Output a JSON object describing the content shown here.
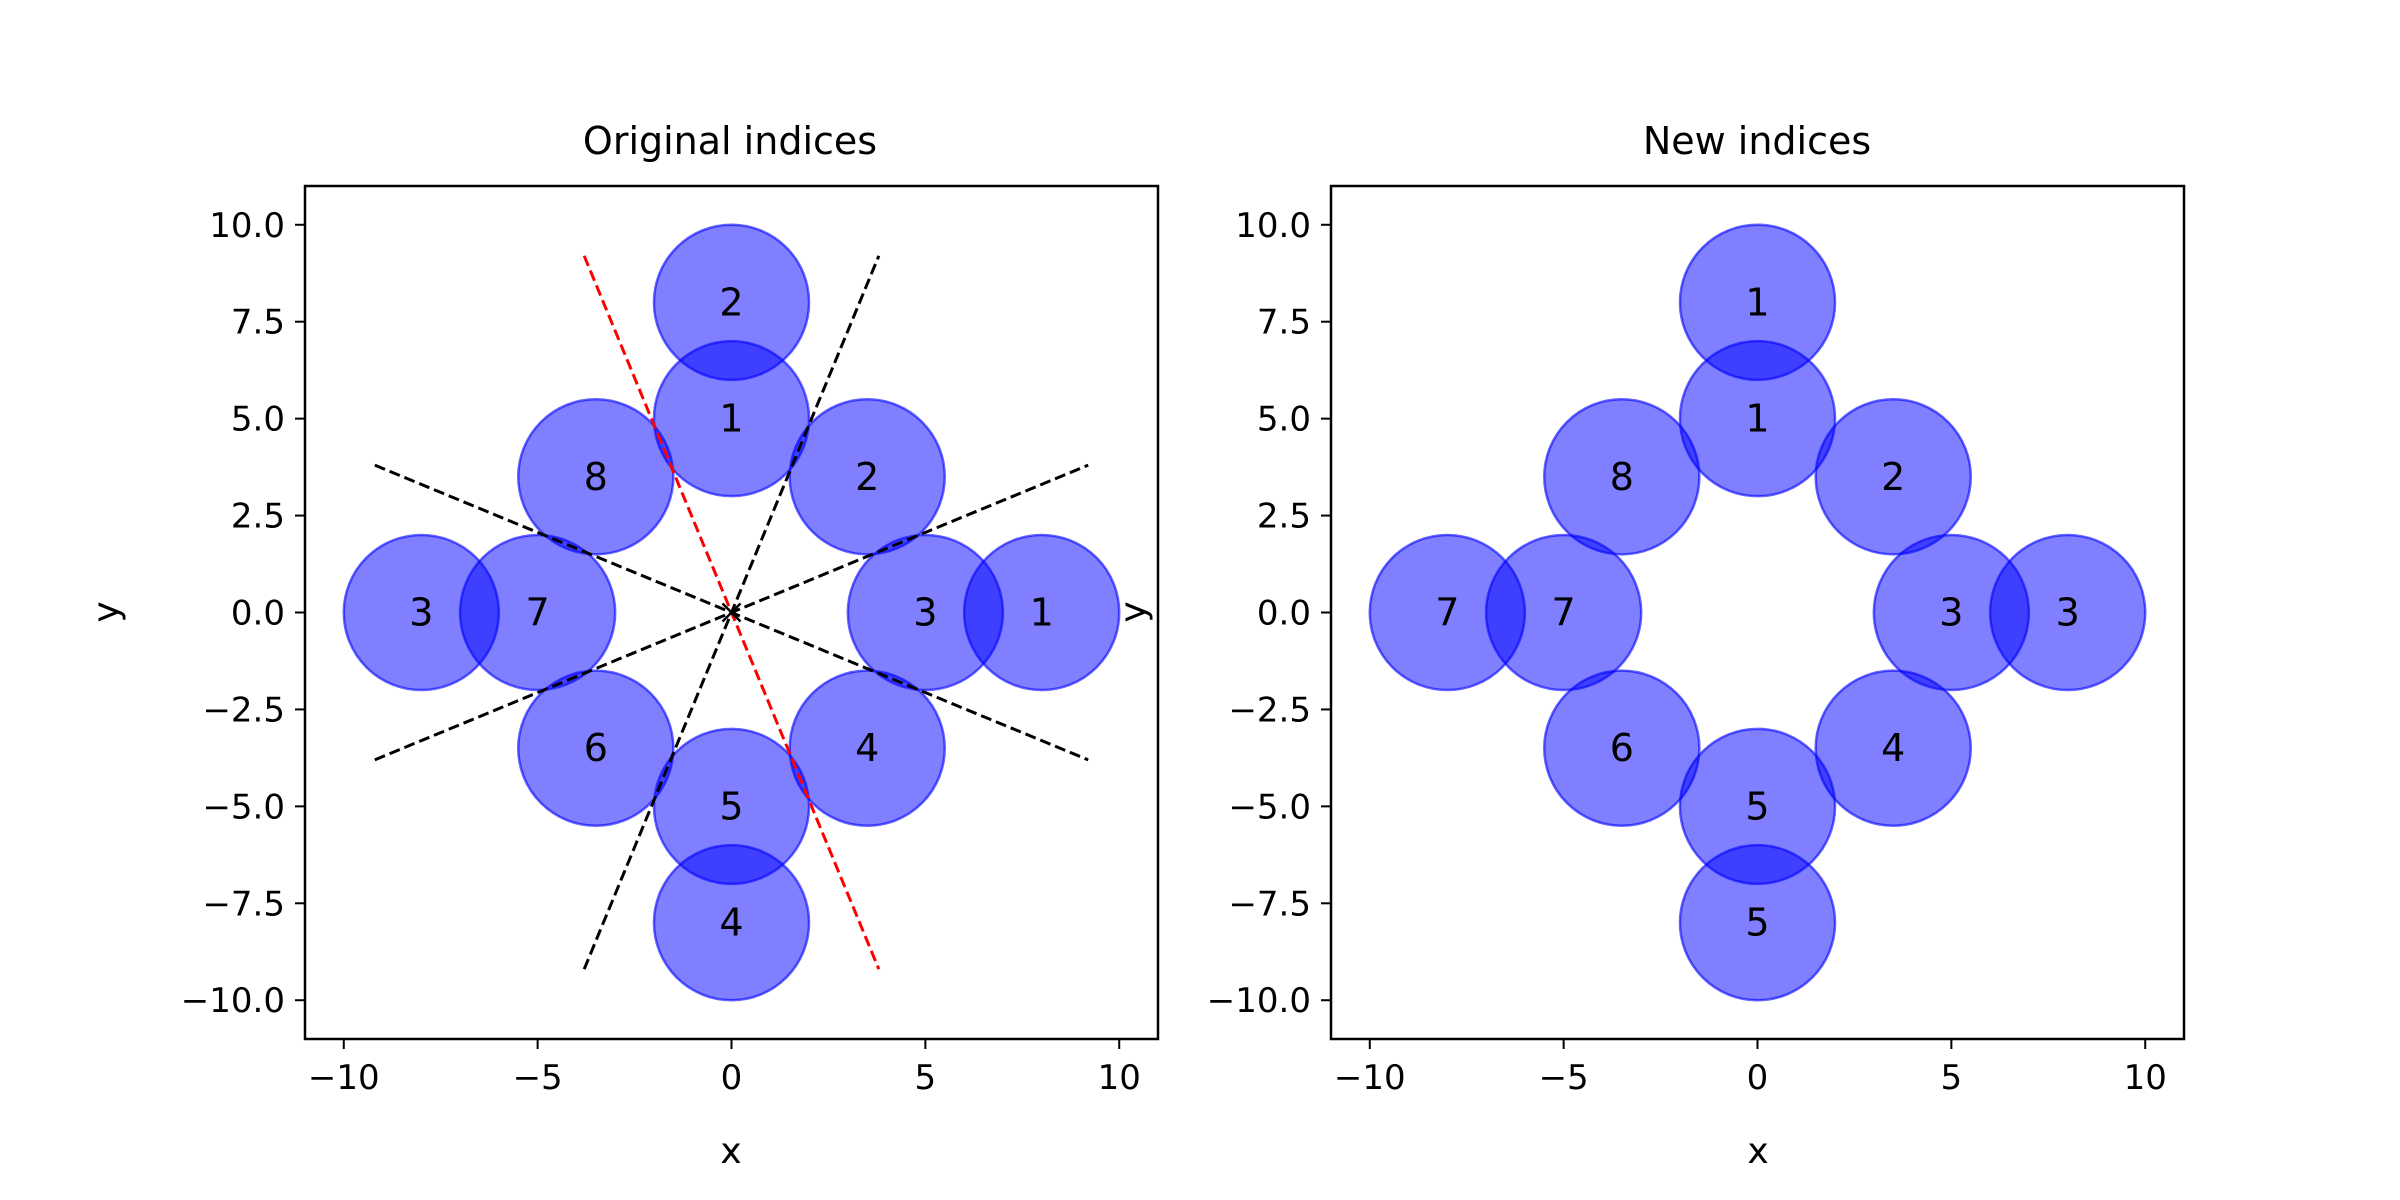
{
  "chart_data": [
    {
      "type": "scatter",
      "title": "Original indices",
      "xlabel": "x",
      "ylabel": "y",
      "xlim": [
        -11,
        11
      ],
      "ylim": [
        -11,
        11
      ],
      "xticks": [
        -10,
        -5,
        0,
        5,
        10
      ],
      "xtick_labels": [
        "−10",
        "−5",
        "0",
        "5",
        "10"
      ],
      "yticks": [
        10,
        7.5,
        5,
        2.5,
        0,
        -2.5,
        -5,
        -7.5,
        -10
      ],
      "ytick_labels": [
        "10.0",
        "7.5",
        "5.0",
        "2.5",
        "0.0",
        "−2.5",
        "−5.0",
        "−7.5",
        "−10.0"
      ],
      "circle_radius": 2,
      "circle_color": "#0000ff",
      "circle_alpha": 0.5,
      "circles": [
        {
          "x": 0,
          "y": 8,
          "label": "2"
        },
        {
          "x": 0,
          "y": 5,
          "label": "1"
        },
        {
          "x": 3.5,
          "y": 3.5,
          "label": "2"
        },
        {
          "x": -3.5,
          "y": 3.5,
          "label": "8"
        },
        {
          "x": -8,
          "y": 0,
          "label": "3"
        },
        {
          "x": -5,
          "y": 0,
          "label": "7"
        },
        {
          "x": 5,
          "y": 0,
          "label": "3"
        },
        {
          "x": 8,
          "y": 0,
          "label": "1"
        },
        {
          "x": -3.5,
          "y": -3.5,
          "label": "6"
        },
        {
          "x": 3.5,
          "y": -3.5,
          "label": "4"
        },
        {
          "x": 0,
          "y": -5,
          "label": "5"
        },
        {
          "x": 0,
          "y": -8,
          "label": "4"
        }
      ],
      "center_marker": {
        "x": 0,
        "y": 0,
        "symbol": "x"
      },
      "lines": [
        {
          "x": [
            -3.8,
            3.8
          ],
          "y": [
            9.2,
            -9.2
          ],
          "color": "#ff0000",
          "style": "dashed"
        },
        {
          "x": [
            -9.2,
            9.2
          ],
          "y": [
            3.8,
            -3.8
          ],
          "color": "#000000",
          "style": "dashed"
        },
        {
          "x": [
            -9.2,
            9.2
          ],
          "y": [
            -3.8,
            3.8
          ],
          "color": "#000000",
          "style": "dashed"
        },
        {
          "x": [
            -3.8,
            3.8
          ],
          "y": [
            -9.2,
            9.2
          ],
          "color": "#000000",
          "style": "dashed"
        }
      ]
    },
    {
      "type": "scatter",
      "title": "New indices",
      "xlabel": "x",
      "ylabel": "y",
      "xlim": [
        -11,
        11
      ],
      "ylim": [
        -11,
        11
      ],
      "xticks": [
        -10,
        -5,
        0,
        5,
        10
      ],
      "xtick_labels": [
        "−10",
        "−5",
        "0",
        "5",
        "10"
      ],
      "yticks": [
        10,
        7.5,
        5,
        2.5,
        0,
        -2.5,
        -5,
        -7.5,
        -10
      ],
      "ytick_labels": [
        "10.0",
        "7.5",
        "5.0",
        "2.5",
        "0.0",
        "−2.5",
        "−5.0",
        "−7.5",
        "−10.0"
      ],
      "circle_radius": 2,
      "circle_color": "#0000ff",
      "circle_alpha": 0.5,
      "circles": [
        {
          "x": 0,
          "y": 8,
          "label": "1"
        },
        {
          "x": 0,
          "y": 5,
          "label": "1"
        },
        {
          "x": 3.5,
          "y": 3.5,
          "label": "2"
        },
        {
          "x": -3.5,
          "y": 3.5,
          "label": "8"
        },
        {
          "x": -8,
          "y": 0,
          "label": "7"
        },
        {
          "x": -5,
          "y": 0,
          "label": "7"
        },
        {
          "x": 5,
          "y": 0,
          "label": "3"
        },
        {
          "x": 8,
          "y": 0,
          "label": "3"
        },
        {
          "x": -3.5,
          "y": -3.5,
          "label": "6"
        },
        {
          "x": 3.5,
          "y": -3.5,
          "label": "4"
        },
        {
          "x": 0,
          "y": -5,
          "label": "5"
        },
        {
          "x": 0,
          "y": -8,
          "label": "5"
        }
      ],
      "lines": []
    }
  ]
}
